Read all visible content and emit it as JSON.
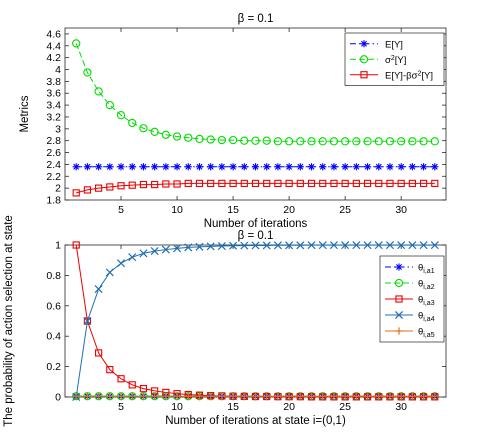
{
  "chart_data": [
    {
      "type": "line",
      "title": "β = 0.1",
      "xlabel": "Number of iterations",
      "ylabel": "Metrics",
      "xlim": [
        0,
        34
      ],
      "ylim": [
        1.8,
        4.7
      ],
      "xticks": [
        5,
        10,
        15,
        20,
        25,
        30
      ],
      "yticks": [
        1.8,
        2,
        2.2,
        2.4,
        2.6,
        2.8,
        3,
        3.2,
        3.4,
        3.6,
        3.8,
        4,
        4.2,
        4.4,
        4.6
      ],
      "ytick_labels": [
        "1.8",
        "2",
        "2.2",
        "2.4",
        "2.6",
        "2.8",
        "3",
        "3.2",
        "3.4",
        "3.6",
        "3.8",
        "4",
        "4.2",
        "4.4",
        "4.6"
      ],
      "grid": false,
      "legend_position": "top-right",
      "x": [
        1,
        2,
        3,
        4,
        5,
        6,
        7,
        8,
        9,
        10,
        11,
        12,
        13,
        14,
        15,
        16,
        17,
        18,
        19,
        20,
        21,
        22,
        23,
        24,
        25,
        26,
        27,
        28,
        29,
        30,
        31,
        32,
        33
      ],
      "series": [
        {
          "name": "E[Y]",
          "color": "#0000ff",
          "marker": "asterisk",
          "dash": "dashdot",
          "values": [
            2.36,
            2.36,
            2.36,
            2.36,
            2.36,
            2.36,
            2.36,
            2.36,
            2.36,
            2.36,
            2.36,
            2.36,
            2.36,
            2.36,
            2.36,
            2.36,
            2.36,
            2.36,
            2.36,
            2.36,
            2.36,
            2.36,
            2.36,
            2.36,
            2.36,
            2.36,
            2.36,
            2.36,
            2.36,
            2.36,
            2.36,
            2.36,
            2.36
          ]
        },
        {
          "name": "σ²[Y]",
          "color": "#00dd00",
          "marker": "circle",
          "dash": "dashed",
          "values": [
            4.44,
            3.95,
            3.63,
            3.4,
            3.23,
            3.1,
            3.01,
            2.95,
            2.9,
            2.87,
            2.85,
            2.83,
            2.82,
            2.81,
            2.81,
            2.8,
            2.8,
            2.8,
            2.79,
            2.79,
            2.79,
            2.79,
            2.79,
            2.79,
            2.79,
            2.79,
            2.79,
            2.79,
            2.79,
            2.79,
            2.79,
            2.79,
            2.79
          ]
        },
        {
          "name": "E[Y]-βσ²[Y]",
          "color": "#ee0000",
          "marker": "square",
          "dash": "solid",
          "values": [
            1.92,
            1.97,
            2.0,
            2.02,
            2.04,
            2.05,
            2.06,
            2.06,
            2.07,
            2.07,
            2.08,
            2.08,
            2.08,
            2.08,
            2.08,
            2.08,
            2.08,
            2.08,
            2.08,
            2.08,
            2.08,
            2.08,
            2.08,
            2.08,
            2.08,
            2.08,
            2.08,
            2.08,
            2.08,
            2.08,
            2.08,
            2.08,
            2.08
          ]
        }
      ]
    },
    {
      "type": "line",
      "title": "β = 0.1",
      "xlabel": "Number of iterations at state i=(0,1)",
      "ylabel": "The probability of action selection at state",
      "xlim": [
        0,
        34
      ],
      "ylim": [
        0,
        1
      ],
      "xticks": [
        5,
        10,
        15,
        20,
        25,
        30
      ],
      "yticks": [
        0,
        0.2,
        0.4,
        0.6,
        0.8,
        1
      ],
      "ytick_labels": [
        "0",
        "0.2",
        "0.4",
        "0.6",
        "0.8",
        "1"
      ],
      "grid": false,
      "legend_position": "right",
      "x": [
        1,
        2,
        3,
        4,
        5,
        6,
        7,
        8,
        9,
        10,
        11,
        12,
        13,
        14,
        15,
        16,
        17,
        18,
        19,
        20,
        21,
        22,
        23,
        24,
        25,
        26,
        27,
        28,
        29,
        30,
        31,
        32,
        33
      ],
      "series": [
        {
          "name": "θi,a1",
          "color": "#0000ff",
          "marker": "asterisk",
          "dash": "dashdot",
          "values": [
            0.005,
            0.005,
            0.005,
            0.005,
            0.005,
            0.005,
            0.005,
            0.005,
            0.005,
            0.005,
            0.005,
            0.005,
            0.005,
            0.005,
            0.005,
            0.005,
            0.005,
            0.005,
            0.005,
            0.005,
            0.005,
            0.005,
            0.005,
            0.005,
            0.005,
            0.005,
            0.005,
            0.005,
            0.005,
            0.005,
            0.005,
            0.005,
            0.005
          ]
        },
        {
          "name": "θi,a2",
          "color": "#00dd00",
          "marker": "circle",
          "dash": "dashed",
          "values": [
            0.005,
            0.005,
            0.005,
            0.005,
            0.005,
            0.005,
            0.005,
            0.005,
            0.005,
            0.005,
            0.005,
            0.005,
            0.005,
            0.005,
            0.005,
            0.005,
            0.005,
            0.005,
            0.005,
            0.005,
            0.005,
            0.005,
            0.005,
            0.005,
            0.005,
            0.005,
            0.005,
            0.005,
            0.005,
            0.005,
            0.005,
            0.005,
            0.005
          ]
        },
        {
          "name": "θi,a3",
          "color": "#ee0000",
          "marker": "square",
          "dash": "solid",
          "values": [
            1.0,
            0.5,
            0.29,
            0.18,
            0.12,
            0.08,
            0.055,
            0.04,
            0.03,
            0.022,
            0.016,
            0.012,
            0.009,
            0.007,
            0.005,
            0.004,
            0.003,
            0.003,
            0.002,
            0.002,
            0.002,
            0.001,
            0.001,
            0.001,
            0.001,
            0.001,
            0.001,
            0.001,
            0.001,
            0.001,
            0.001,
            0.001,
            0.001
          ]
        },
        {
          "name": "θi,a4",
          "color": "#1f6fb4",
          "marker": "x",
          "dash": "solid",
          "values": [
            0.0,
            0.5,
            0.71,
            0.82,
            0.88,
            0.92,
            0.945,
            0.96,
            0.97,
            0.978,
            0.984,
            0.988,
            0.991,
            0.993,
            0.995,
            0.996,
            0.997,
            0.997,
            0.998,
            0.998,
            0.998,
            0.999,
            0.999,
            0.999,
            0.999,
            0.999,
            0.999,
            0.999,
            0.999,
            0.999,
            0.999,
            0.999,
            0.999
          ]
        },
        {
          "name": "θi,a5",
          "color": "#e07020",
          "marker": "plus",
          "dash": "solid",
          "values": [
            0.005,
            0.005,
            0.005,
            0.005,
            0.005,
            0.005,
            0.005,
            0.005,
            0.005,
            0.005,
            0.005,
            0.005,
            0.005,
            0.005,
            0.005,
            0.005,
            0.005,
            0.005,
            0.005,
            0.005,
            0.005,
            0.005,
            0.005,
            0.005,
            0.005,
            0.005,
            0.005,
            0.005,
            0.005,
            0.005,
            0.005,
            0.005,
            0.005
          ]
        }
      ]
    }
  ]
}
